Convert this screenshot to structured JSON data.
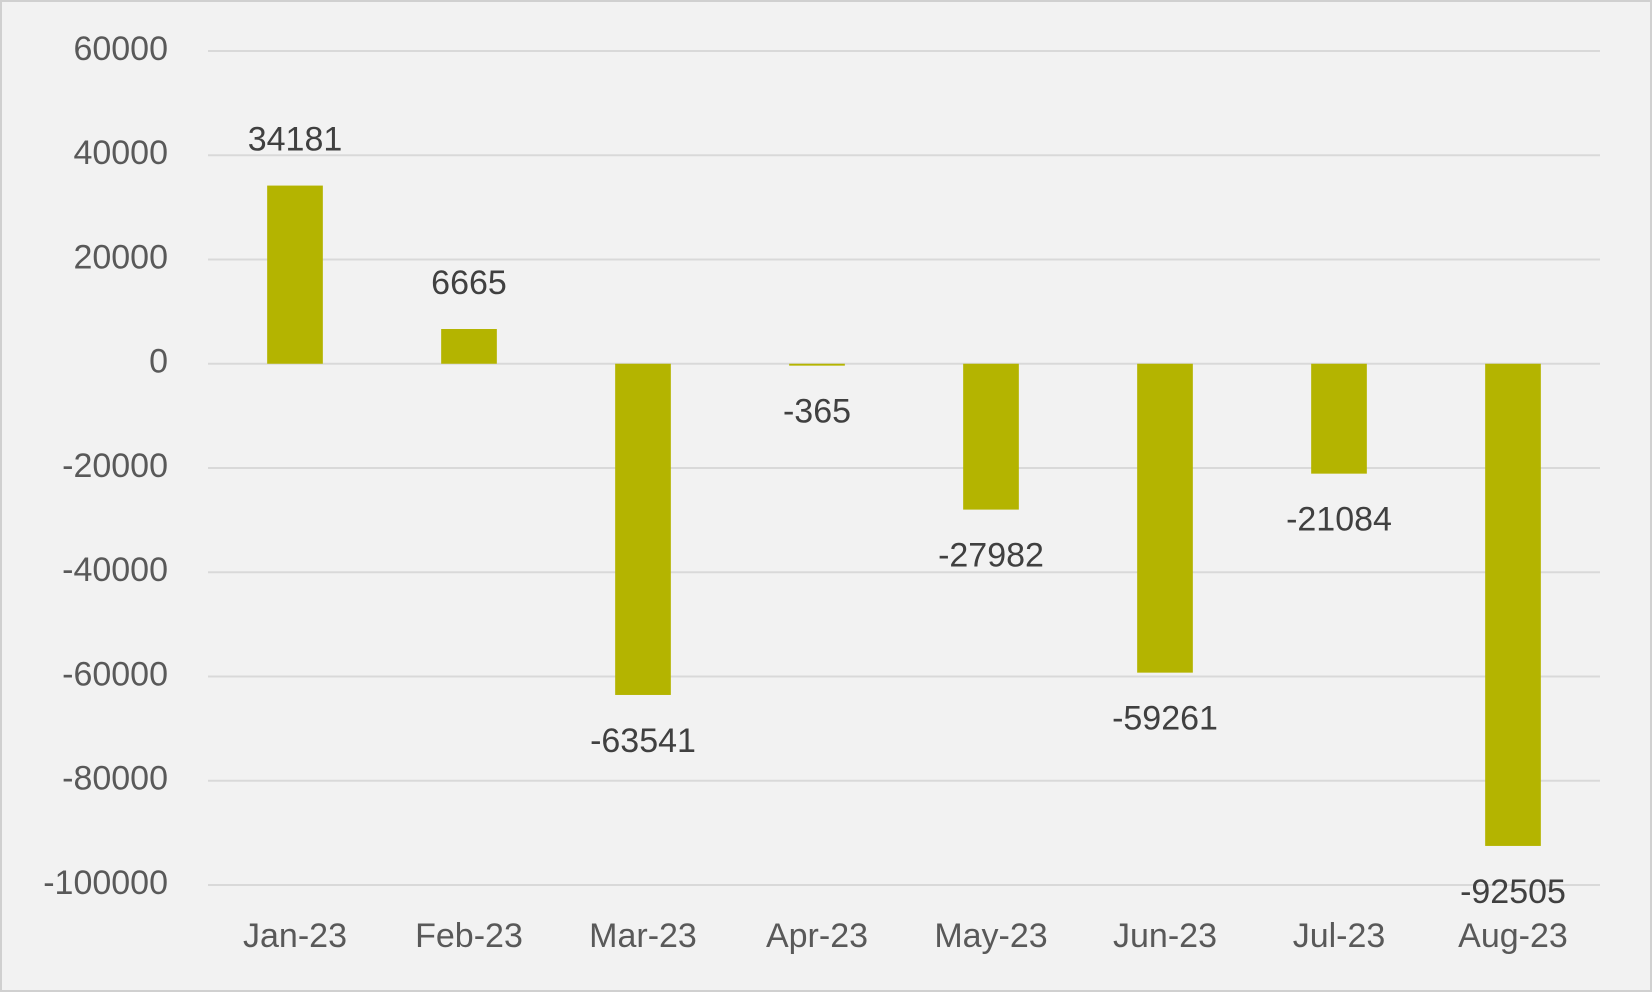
{
  "chart_data": {
    "type": "bar",
    "categories": [
      "Jan-23",
      "Feb-23",
      "Mar-23",
      "Apr-23",
      "May-23",
      "Jun-23",
      "Jul-23",
      "Aug-23"
    ],
    "values": [
      34181,
      6665,
      -63541,
      -365,
      -27982,
      -59261,
      -21084,
      -92505
    ],
    "color": "#b4b400",
    "ylim": [
      -100000,
      60000
    ],
    "yticks": [
      -100000,
      -80000,
      -60000,
      -40000,
      -20000,
      0,
      20000,
      40000,
      60000
    ],
    "grid": true
  }
}
